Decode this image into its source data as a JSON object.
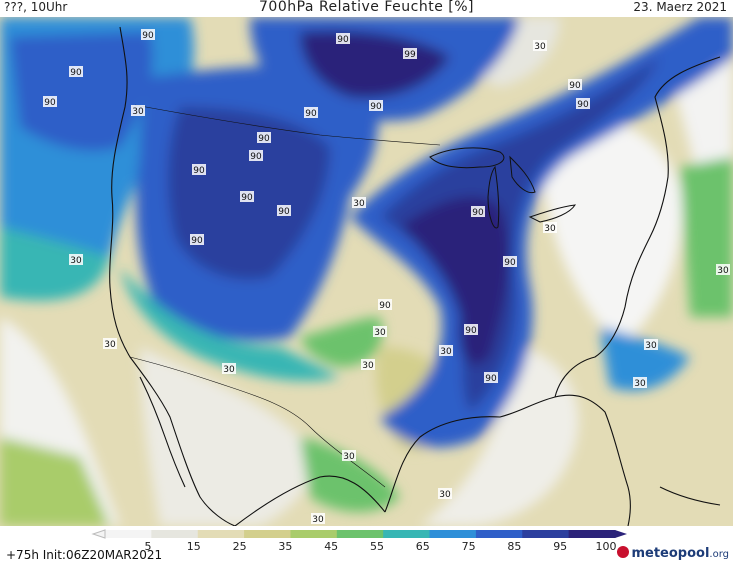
{
  "header": {
    "left": "???, 10Uhr",
    "title": "700hPa Relative Feuchte [%]",
    "date": "23. Maerz 2021"
  },
  "footer": {
    "run_info": "+75h  Init:06Z20MAR2021",
    "logo_text": "meteopool",
    "logo_suffix": ".org"
  },
  "colorbar": {
    "labels": [
      "5",
      "15",
      "25",
      "35",
      "45",
      "55",
      "65",
      "75",
      "85",
      "95",
      "100"
    ],
    "colors": [
      "#f4f4f4",
      "#e6e6df",
      "#e3dcb6",
      "#d3cf8d",
      "#a9cc6b",
      "#6cc26c",
      "#37b6b4",
      "#2e8fd8",
      "#2f5fc8",
      "#2c3f9e",
      "#2b237a"
    ]
  },
  "contour_labels": [
    "90",
    "90",
    "90",
    "90",
    "99",
    "90",
    "90",
    "90",
    "90",
    "90",
    "90",
    "90",
    "90",
    "90",
    "90",
    "90",
    "90",
    "90",
    "90",
    "90",
    "30",
    "30",
    "30",
    "30",
    "30",
    "30",
    "30",
    "30",
    "30",
    "30",
    "30",
    "30",
    "30",
    "30",
    "30",
    "30"
  ]
}
